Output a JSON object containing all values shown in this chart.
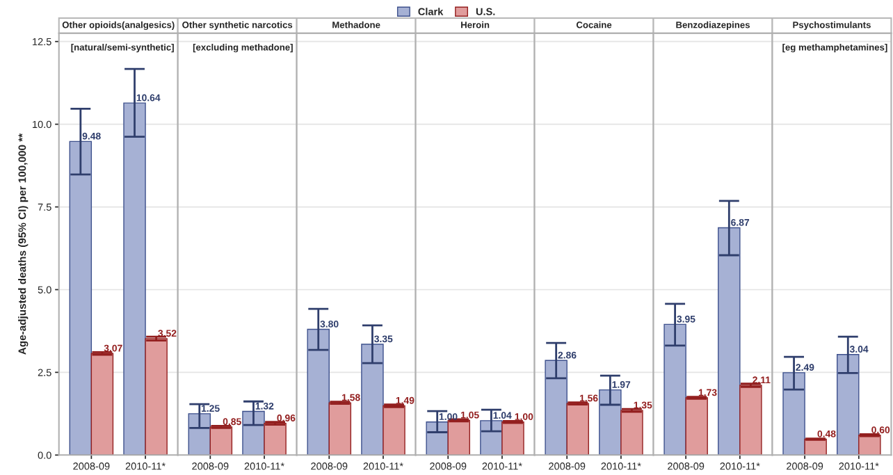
{
  "chart_data": [
    {
      "type": "bar",
      "title": "Other opioids(analgesics)",
      "ylabel": "Age-adjusted deaths (95% CI) per 100,000 **",
      "annotations": [
        "[natural/semi-synthetic]"
      ],
      "categories": [
        "2008-09",
        "2010-11*"
      ],
      "legend": "top",
      "grid": "y",
      "ylim": [
        0,
        12.75
      ],
      "yticks": [
        {
          "value": 0,
          "label": "0.0"
        },
        {
          "value": 2.5,
          "label": "2.5"
        },
        {
          "value": 5,
          "label": "5.0"
        },
        {
          "value": 7.5,
          "label": "7.5"
        },
        {
          "value": 10,
          "label": "10.0"
        },
        {
          "value": 12.5,
          "label": "12.5"
        }
      ],
      "series": [
        {
          "name": "Clark",
          "color": "#a6b1d4",
          "values": [
            9.48,
            10.64
          ],
          "value_labels": [
            "9.48",
            "10.64"
          ],
          "errors": [
            [
              8.48,
              10.47
            ],
            [
              9.62,
              11.67
            ]
          ]
        },
        {
          "name": "U.S.",
          "color": "#e09c9c",
          "values": [
            3.07,
            3.52
          ],
          "value_labels": [
            "3.07",
            "3.52"
          ],
          "errors": [
            0.04,
            0.06
          ]
        }
      ]
    },
    {
      "type": "bar",
      "title": "Other synthetic narcotics",
      "annotations": [
        "[excluding methadone]"
      ],
      "categories": [
        "2008-09",
        "2010-11*"
      ],
      "grid": "y",
      "tick_labels": "x",
      "ylim": [
        0,
        12.75
      ],
      "series": [
        {
          "name": "Clark",
          "color": "#a6b1d4",
          "values": [
            1.25,
            1.32
          ],
          "value_labels": [
            "1.25",
            "1.32"
          ],
          "errors": [
            [
              0.82,
              1.54
            ],
            [
              0.91,
              1.62
            ]
          ]
        },
        {
          "name": "U.S.",
          "color": "#e09c9c",
          "values": [
            0.85,
            0.96
          ],
          "value_labels": [
            "0.85",
            "0.96"
          ],
          "errors": [
            0.03,
            0.04
          ]
        }
      ]
    },
    {
      "type": "bar",
      "title": "Methadone",
      "categories": [
        "2008-09",
        "2010-11*"
      ],
      "grid": "y",
      "tick_labels": "x",
      "ylim": [
        0,
        12.75
      ],
      "series": [
        {
          "name": "Clark",
          "color": "#a6b1d4",
          "values": [
            3.8,
            3.35
          ],
          "value_labels": [
            "3.80",
            "3.35"
          ],
          "errors": [
            [
              3.18,
              4.42
            ],
            [
              2.78,
              3.92
            ]
          ]
        },
        {
          "name": "U.S.",
          "color": "#e09c9c",
          "values": [
            1.58,
            1.49
          ],
          "value_labels": [
            "1.58",
            "1.49"
          ],
          "errors": [
            0.03,
            0.04
          ]
        }
      ]
    },
    {
      "type": "bar",
      "title": "Heroin",
      "categories": [
        "2008-09",
        "2010-11*"
      ],
      "grid": "y",
      "tick_labels": "x",
      "ylim": [
        0,
        12.75
      ],
      "series": [
        {
          "name": "Clark",
          "color": "#a6b1d4",
          "values": [
            1.0,
            1.04
          ],
          "value_labels": [
            "1.00",
            "1.04"
          ],
          "errors": [
            [
              0.69,
              1.33
            ],
            [
              0.72,
              1.37
            ]
          ]
        },
        {
          "name": "U.S.",
          "color": "#e09c9c",
          "values": [
            1.05,
            1.0
          ],
          "value_labels": [
            "1.05",
            "1.00"
          ],
          "errors": [
            0.03,
            0.03
          ]
        }
      ]
    },
    {
      "type": "bar",
      "title": "Cocaine",
      "categories": [
        "2008-09",
        "2010-11*"
      ],
      "grid": "y",
      "tick_labels": "x",
      "ylim": [
        0,
        12.75
      ],
      "series": [
        {
          "name": "Clark",
          "color": "#a6b1d4",
          "values": [
            2.86,
            1.97
          ],
          "value_labels": [
            "2.86",
            "1.97"
          ],
          "errors": [
            [
              2.32,
              3.39
            ],
            [
              1.52,
              2.4
            ]
          ]
        },
        {
          "name": "U.S.",
          "color": "#e09c9c",
          "values": [
            1.56,
            1.35
          ],
          "value_labels": [
            "1.56",
            "1.35"
          ],
          "errors": [
            0.03,
            0.04
          ]
        }
      ]
    },
    {
      "type": "bar",
      "title": "Benzodiazepines",
      "categories": [
        "2008-09",
        "2010-11*"
      ],
      "grid": "y",
      "tick_labels": "x",
      "ylim": [
        0,
        12.75
      ],
      "series": [
        {
          "name": "Clark",
          "color": "#a6b1d4",
          "values": [
            3.95,
            6.87
          ],
          "value_labels": [
            "3.95",
            "6.87"
          ],
          "errors": [
            [
              3.31,
              4.57
            ],
            [
              6.04,
              7.68
            ]
          ]
        },
        {
          "name": "U.S.",
          "color": "#e09c9c",
          "values": [
            1.73,
            2.11
          ],
          "value_labels": [
            "1.73",
            "2.11"
          ],
          "errors": [
            0.03,
            0.05
          ]
        }
      ]
    },
    {
      "type": "bar",
      "title": "Psychostimulants",
      "annotations": [
        "[eg methamphetamines]"
      ],
      "categories": [
        "2008-09",
        "2010-11*"
      ],
      "grid": "y",
      "tick_labels": "x",
      "ylim": [
        0,
        12.75
      ],
      "series": [
        {
          "name": "Clark",
          "color": "#a6b1d4",
          "values": [
            2.49,
            3.04
          ],
          "value_labels": [
            "2.49",
            "3.04"
          ],
          "errors": [
            [
              1.98,
              2.97
            ],
            [
              2.48,
              3.58
            ]
          ]
        },
        {
          "name": "U.S.",
          "color": "#e09c9c",
          "values": [
            0.48,
            0.6
          ],
          "value_labels": [
            "0.48",
            "0.60"
          ],
          "errors": [
            0.02,
            0.03
          ]
        }
      ]
    }
  ]
}
